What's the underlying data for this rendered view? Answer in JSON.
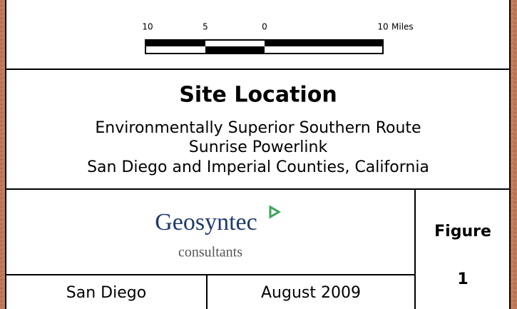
{
  "scale_bar": {
    "labels": [
      "10",
      "5",
      "0",
      "10"
    ],
    "unit": "Miles"
  },
  "title": "Site Location",
  "subtitle": [
    "Environmentally Superior Southern Route",
    "Sunrise Powerlink",
    "San Diego and Imperial Counties, California"
  ],
  "logo": {
    "name": "Geosyntec",
    "tagline": "consultants"
  },
  "figure": {
    "label": "Figure",
    "number": "1"
  },
  "location": "San Diego",
  "date": "August 2009"
}
